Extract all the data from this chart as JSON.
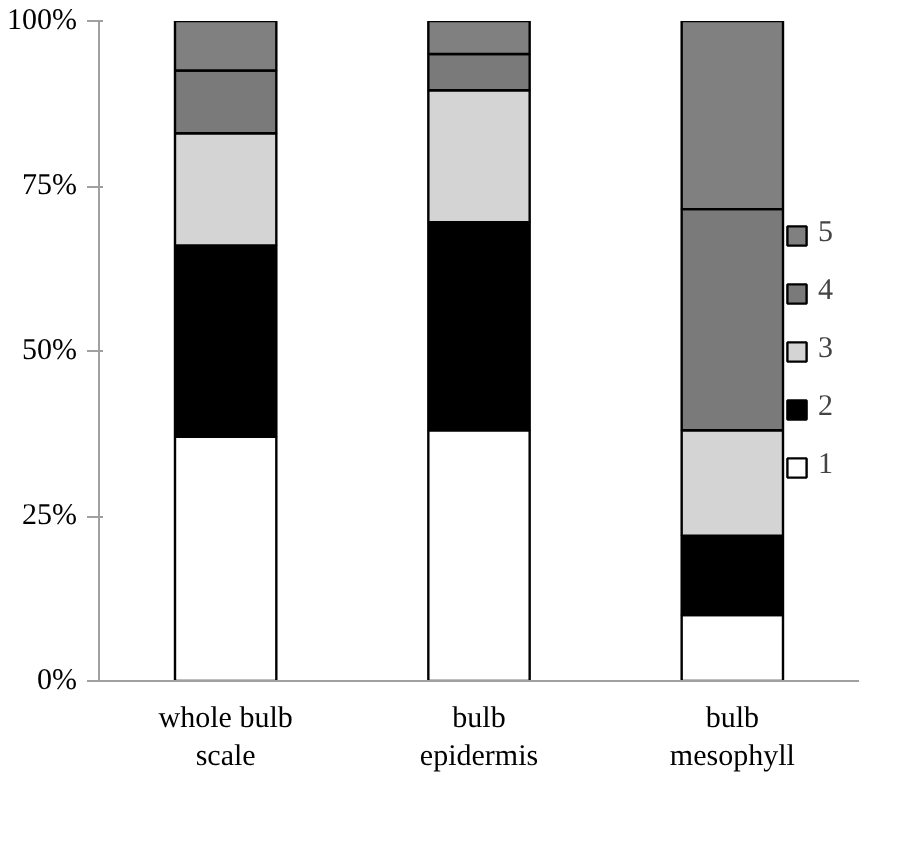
{
  "chart_data": {
    "type": "bar",
    "stacked": true,
    "categories": [
      "whole bulb\nscale",
      "bulb\nepidermis",
      "bulb\nmesophyll"
    ],
    "series": [
      {
        "name": "1",
        "color": "#ffffff",
        "values": [
          37,
          38,
          10
        ]
      },
      {
        "name": "2",
        "color": "#000000",
        "values": [
          29,
          31.5,
          12
        ]
      },
      {
        "name": "3",
        "color": "#d4d4d4",
        "values": [
          17,
          20,
          16
        ]
      },
      {
        "name": "4",
        "color": "#7a7a7a",
        "values": [
          9.5,
          5.5,
          33.5
        ]
      },
      {
        "name": "5",
        "color": "#808080",
        "values": [
          7.5,
          5,
          28.5
        ]
      }
    ],
    "ylim": [
      0,
      100
    ],
    "yticks": [
      {
        "value": 0,
        "label": "0%"
      },
      {
        "value": 25,
        "label": "25%"
      },
      {
        "value": 50,
        "label": "50%"
      },
      {
        "value": 75,
        "label": "75%"
      },
      {
        "value": 100,
        "label": "100%"
      }
    ],
    "grid": false,
    "legend": "right"
  }
}
